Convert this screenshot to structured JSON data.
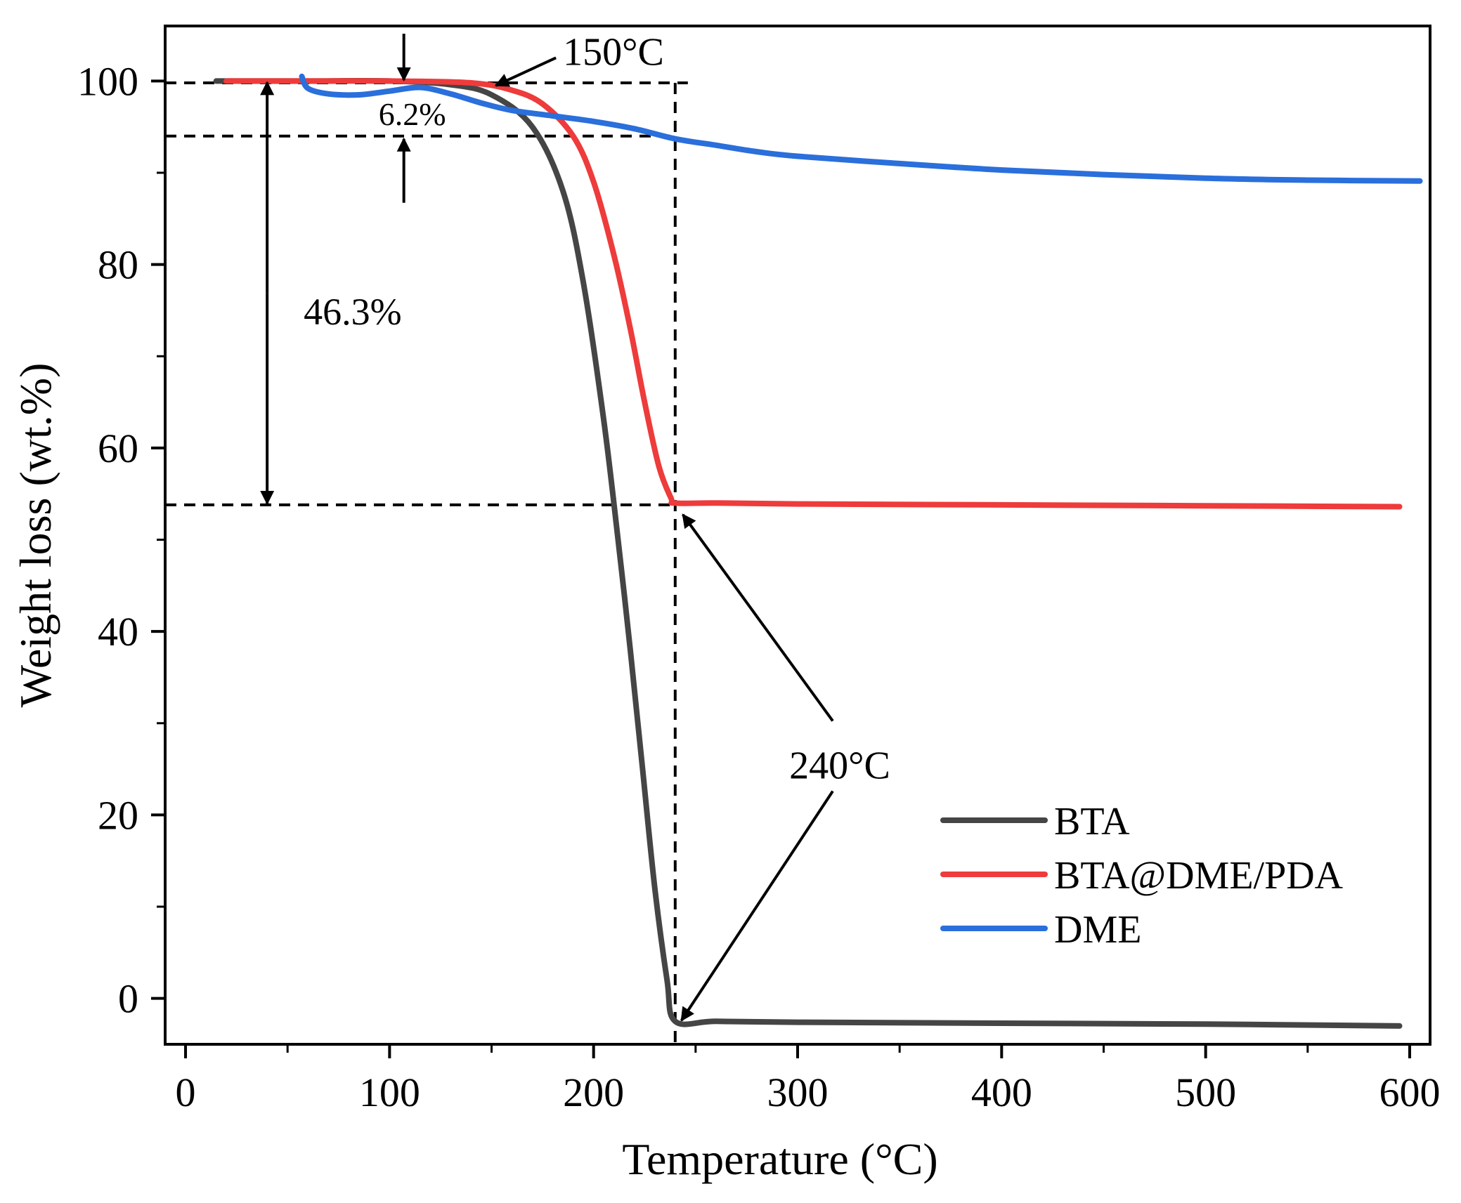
{
  "chart_data": {
    "type": "line",
    "title": "",
    "xlabel": "Temperature (°C)",
    "ylabel": "Weight loss (wt.%)",
    "xlim": [
      -10,
      610
    ],
    "ylim": [
      -5,
      106
    ],
    "xticks": [
      0,
      100,
      200,
      300,
      400,
      500,
      600
    ],
    "xtick_labels": [
      "0",
      "100",
      "200",
      "300",
      "400",
      "500",
      "600"
    ],
    "yticks": [
      0,
      20,
      40,
      60,
      80,
      100
    ],
    "ytick_labels": [
      "0",
      "20",
      "40",
      "60",
      "80",
      "100"
    ],
    "grid": false,
    "legend_position": "bottom-right",
    "series": [
      {
        "name": "BTA",
        "color": "#454545",
        "x": [
          15,
          60,
          100,
          130,
          150,
          170,
          185,
          195,
          205,
          212,
          218,
          224,
          230,
          236,
          240,
          260,
          300,
          400,
          500,
          595
        ],
        "y": [
          100,
          100,
          100,
          99.6,
          98.5,
          95,
          88,
          78,
          63,
          50,
          38,
          25,
          12,
          2,
          -2.5,
          -2.5,
          -2.6,
          -2.7,
          -2.8,
          -3.0
        ]
      },
      {
        "name": "BTA@DME/PDA",
        "color": "#ee3b3b",
        "x": [
          20,
          60,
          100,
          140,
          160,
          175,
          190,
          200,
          210,
          218,
          225,
          232,
          238,
          240,
          260,
          300,
          400,
          500,
          595
        ],
        "y": [
          100,
          100,
          100,
          99.8,
          99,
          97.5,
          94,
          89,
          81,
          73,
          65,
          58,
          54.5,
          54,
          54,
          53.9,
          53.8,
          53.7,
          53.6
        ]
      },
      {
        "name": "DME",
        "color": "#2a6fdb",
        "x": [
          57,
          60,
          70,
          85,
          100,
          115,
          130,
          145,
          160,
          180,
          200,
          220,
          240,
          260,
          280,
          300,
          350,
          400,
          450,
          500,
          550,
          605
        ],
        "y": [
          100.5,
          99.2,
          98.6,
          98.5,
          98.9,
          99.3,
          98.6,
          97.6,
          96.8,
          96.2,
          95.6,
          94.8,
          93.7,
          93.0,
          92.3,
          91.8,
          91.0,
          90.3,
          89.8,
          89.4,
          89.2,
          89.1
        ]
      }
    ],
    "reference_lines": {
      "y_levels": [
        99.8,
        94.0,
        53.8
      ],
      "x_level": 240
    },
    "annotations": [
      {
        "text": "150°C",
        "point": [
          150,
          99.2
        ],
        "text_at": [
          185,
          103.3
        ]
      },
      {
        "text": "240°C",
        "point": [
          241,
          53.5
        ],
        "text_at": [
          300,
          25.5
        ]
      },
      {
        "text": "6.2%",
        "bracket_x": 107,
        "y_range": [
          99.8,
          94.0
        ]
      },
      {
        "text": "46.3%",
        "bracket_x": 40,
        "y_range": [
          100,
          53.8
        ]
      }
    ]
  }
}
